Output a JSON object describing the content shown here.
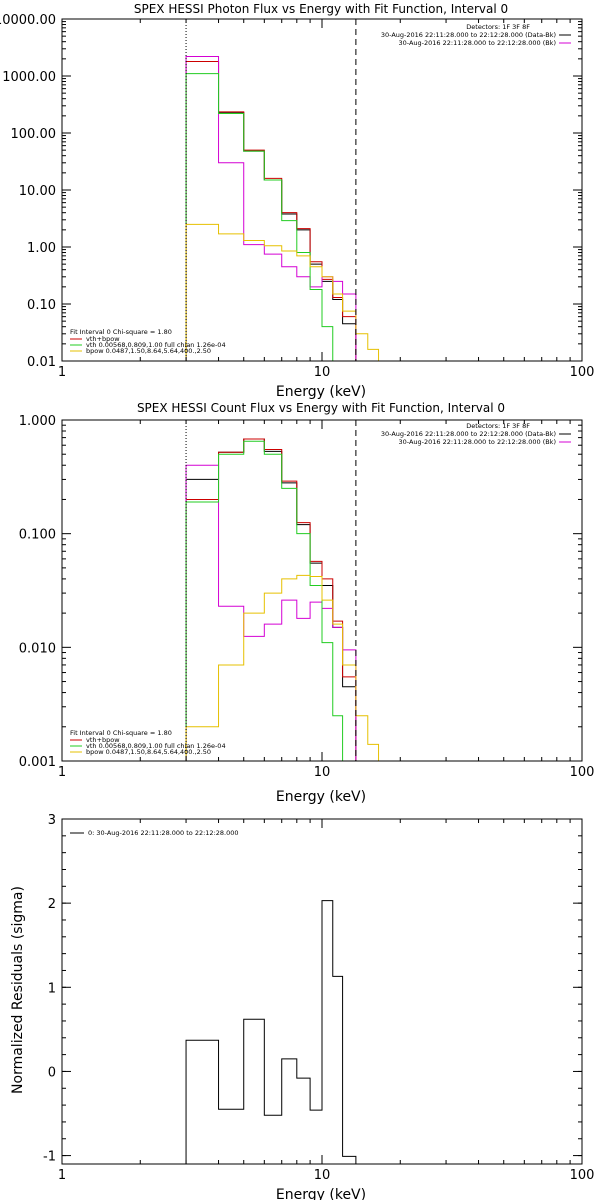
{
  "colors": {
    "data": "#000000",
    "background": "#cc0000",
    "total_fit": "#d400d4",
    "vth": "#22cc22",
    "bpow": "#e6c000",
    "axis": "#000000"
  },
  "chart_data": [
    {
      "type": "line",
      "title": "SPEX HESSI Photon Flux vs Energy with Fit Function, Interval 0",
      "xlabel": "Energy (keV)",
      "ylabel": "",
      "xscale": "log",
      "yscale": "log",
      "xlim": [
        1,
        100
      ],
      "ylim": [
        0.01,
        10000
      ],
      "xticks": [
        {
          "v": 1,
          "label": "1"
        },
        {
          "v": 10,
          "label": "10"
        },
        {
          "v": 100,
          "label": "100"
        }
      ],
      "yticks": [
        {
          "v": 10000,
          "label": "10000.00"
        },
        {
          "v": 1000,
          "label": "1000.00"
        },
        {
          "v": 100,
          "label": "100.00"
        },
        {
          "v": 10,
          "label": "10.00"
        },
        {
          "v": 1,
          "label": "1.00"
        },
        {
          "v": 0.1,
          "label": "0.10"
        },
        {
          "v": 0.01,
          "label": "0.01"
        }
      ],
      "energy_edges": [
        3,
        4,
        5,
        6,
        7,
        8,
        9,
        10,
        11,
        12,
        13.5,
        15,
        16.5,
        18
      ],
      "vlines": [
        {
          "x": 3,
          "style": "dotted"
        },
        {
          "x": 13.5,
          "style": "dashed"
        }
      ],
      "legend_header": "Detectors: 1F 3F 8F",
      "legend_right": [
        {
          "text": "30-Aug-2016 22:11:28.000 to 22:12:28.000 (Data-Bk)",
          "color": "data"
        },
        {
          "text": "30-Aug-2016 22:11:28.000 to 22:12:28.000 (Bk)",
          "color": "total_fit"
        }
      ],
      "legend_left": [
        {
          "text": "Fit Interval 0   Chi-square = 1.80",
          "color": ""
        },
        {
          "text": "vth+bpow",
          "color": "background"
        },
        {
          "text": "vth 0.00568,0.809,1.00  full chian 1.26e-04",
          "color": "vth"
        },
        {
          "text": "bpow 0.0487,1.50,8.64,5.64,400.,2.50",
          "color": "bpow"
        }
      ],
      "series": [
        {
          "key": "data",
          "values": [
            1800,
            230,
            48,
            15,
            3.8,
            2,
            0.5,
            0.25,
            0.12,
            0.045
          ]
        },
        {
          "key": "background",
          "values": [
            1800,
            235,
            50,
            16,
            4,
            2.1,
            0.55,
            0.27,
            0.13,
            0.06
          ]
        },
        {
          "key": "total_fit",
          "values": [
            2200,
            30,
            1.1,
            0.75,
            0.45,
            0.3,
            0.2,
            0.3,
            0.25,
            0.15,
            0.01
          ]
        },
        {
          "key": "vth",
          "values": [
            1100,
            220,
            48,
            15,
            2.9,
            0.8,
            0.18,
            0.04,
            0.01
          ]
        },
        {
          "key": "bpow",
          "values": [
            2.5,
            1.7,
            1.3,
            1.05,
            0.85,
            0.7,
            0.45,
            0.3,
            0.15,
            0.075,
            0.03,
            0.016,
            0.01
          ]
        }
      ]
    },
    {
      "type": "line",
      "title": "SPEX HESSI Count Flux vs Energy with Fit Function, Interval 0",
      "xlabel": "Energy (keV)",
      "ylabel": "",
      "xscale": "log",
      "yscale": "log",
      "xlim": [
        1,
        100
      ],
      "ylim": [
        0.001,
        1
      ],
      "xticks": [
        {
          "v": 1,
          "label": "1"
        },
        {
          "v": 10,
          "label": "10"
        },
        {
          "v": 100,
          "label": "100"
        }
      ],
      "yticks": [
        {
          "v": 1,
          "label": "1.000"
        },
        {
          "v": 0.1,
          "label": "0.100"
        },
        {
          "v": 0.01,
          "label": "0.010"
        },
        {
          "v": 0.001,
          "label": "0.001"
        }
      ],
      "energy_edges": [
        3,
        4,
        5,
        6,
        7,
        8,
        9,
        10,
        11,
        12,
        13.5,
        15,
        16.5,
        18
      ],
      "vlines": [
        {
          "x": 3,
          "style": "dotted"
        },
        {
          "x": 13.5,
          "style": "dashed"
        }
      ],
      "legend_header": "Detectors: 1F 3F 8F",
      "legend_right": [
        {
          "text": "30-Aug-2016 22:11:28.000 to 22:12:28.000 (Data-Bk)",
          "color": "data"
        },
        {
          "text": "30-Aug-2016 22:11:28.000 to 22:12:28.000 (Bk)",
          "color": "total_fit"
        }
      ],
      "legend_left": [
        {
          "text": "Fit Interval 0   Chi-square = 1.80",
          "color": ""
        },
        {
          "text": "vth+bpow",
          "color": "background"
        },
        {
          "text": "vth 0.00568,0.809,1.00  full chian 1.26e-04",
          "color": "vth"
        },
        {
          "text": "bpow 0.0487,1.50,8.64,5.64,400.,2.50",
          "color": "bpow"
        }
      ],
      "series": [
        {
          "key": "data",
          "values": [
            0.3,
            0.52,
            0.68,
            0.53,
            0.28,
            0.12,
            0.055,
            0.035,
            0.015,
            0.0045
          ]
        },
        {
          "key": "background",
          "values": [
            0.2,
            0.52,
            0.68,
            0.55,
            0.29,
            0.125,
            0.057,
            0.04,
            0.017,
            0.0055
          ]
        },
        {
          "key": "total_fit",
          "values": [
            0.4,
            0.023,
            0.0125,
            0.016,
            0.026,
            0.018,
            0.025,
            0.022,
            0.015,
            0.0095,
            0.001
          ]
        },
        {
          "key": "vth",
          "values": [
            0.19,
            0.5,
            0.65,
            0.5,
            0.25,
            0.1,
            0.035,
            0.011,
            0.0025,
            0.001
          ]
        },
        {
          "key": "bpow",
          "values": [
            0.002,
            0.007,
            0.02,
            0.03,
            0.04,
            0.043,
            0.042,
            0.026,
            0.016,
            0.007,
            0.0025,
            0.0014,
            0.001
          ]
        }
      ]
    },
    {
      "type": "line",
      "title": "",
      "xlabel": "Energy (keV)",
      "ylabel": "Normalized Residuals (sigma)",
      "xscale": "log",
      "yscale": "linear",
      "xlim": [
        1,
        100
      ],
      "ylim": [
        -1.1,
        3
      ],
      "xticks": [
        {
          "v": 1,
          "label": "1"
        },
        {
          "v": 10,
          "label": "10"
        },
        {
          "v": 100,
          "label": "100"
        }
      ],
      "yticks": [
        {
          "v": 3,
          "label": "3"
        },
        {
          "v": 2,
          "label": "2"
        },
        {
          "v": 1,
          "label": "1"
        },
        {
          "v": 0,
          "label": "0"
        },
        {
          "v": -1,
          "label": "-1"
        }
      ],
      "energy_edges": [
        3,
        4,
        5,
        6,
        7,
        8,
        9,
        10,
        11,
        12,
        13.5
      ],
      "legend_left": [
        {
          "text": "0: 30-Aug-2016 22:11:28.000 to 22:12:28.000",
          "color": "data"
        }
      ],
      "series": [
        {
          "key": "data",
          "values": [
            0.37,
            -0.45,
            0.62,
            -0.52,
            0.15,
            -0.08,
            -0.46,
            2.03,
            1.13,
            -1.01
          ]
        }
      ]
    }
  ]
}
